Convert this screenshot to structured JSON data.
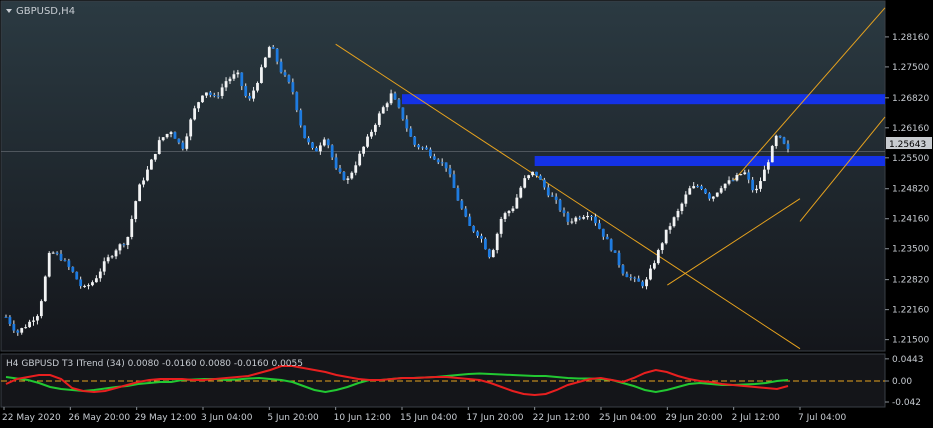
{
  "chart_data": [
    {
      "type": "candlestick",
      "title": "GBPUSD,H4",
      "yticks": [
        "1.28160",
        "1.27500",
        "1.26820",
        "1.26160",
        "1.25500",
        "1.24820",
        "1.24160",
        "1.23500",
        "1.22820",
        "1.22160",
        "1.21500"
      ],
      "ylim": [
        1.2125,
        1.2895
      ],
      "price_label": "1.25643",
      "current_price": 1.25643,
      "xticks": [
        "22 May 2020",
        "26 May 20:00",
        "29 May 12:00",
        "3 Jun 04:00",
        "5 Jun 20:00",
        "10 Jun 12:00",
        "15 Jun 04:00",
        "17 Jun 20:00",
        "22 Jun 12:00",
        "25 Jun 04:00",
        "29 Jun 20:00",
        "2 Jul 12:00",
        "7 Jul 04:00"
      ],
      "close_path": [
        1.22,
        1.2165,
        1.2185,
        1.221,
        1.2345,
        1.233,
        1.23,
        1.226,
        1.228,
        1.232,
        1.235,
        1.237,
        1.248,
        1.253,
        1.259,
        1.261,
        1.257,
        1.265,
        1.27,
        1.268,
        1.272,
        1.2735,
        1.267,
        1.273,
        1.28,
        1.274,
        1.27,
        1.26,
        1.256,
        1.26,
        1.252,
        1.25,
        1.255,
        1.26,
        1.265,
        1.269,
        1.264,
        1.258,
        1.257,
        1.255,
        1.253,
        1.246,
        1.24,
        1.238,
        1.233,
        1.242,
        1.244,
        1.25,
        1.252,
        1.248,
        1.245,
        1.241,
        1.242,
        1.243,
        1.239,
        1.235,
        1.23,
        1.228,
        1.227,
        1.233,
        1.239,
        1.243,
        1.248,
        1.249,
        1.246,
        1.249,
        1.25,
        1.252,
        1.247,
        1.253,
        1.26,
        1.2565
      ],
      "levels": [
        {
          "type": "resistance",
          "price": 1.2679,
          "from": "15 Jun 04:00",
          "to": "latest"
        },
        {
          "type": "resistance",
          "price": 1.2543,
          "from": "22 Jun 12:00",
          "to": "latest"
        }
      ],
      "trendlines": [
        {
          "from": [
            1.28,
            "10 Jun 12:00"
          ],
          "to": [
            1.213,
            "7 Jul 04:00"
          ]
        },
        {
          "from": [
            1.25,
            "2 Jul 12:00"
          ],
          "to": [
            1.288,
            "latest"
          ]
        },
        {
          "from": [
            1.241,
            "7 Jul 04:00"
          ],
          "to": [
            1.264,
            "latest"
          ]
        },
        {
          "from": [
            1.227,
            "29 Jun 20:00"
          ],
          "to": [
            1.246,
            "7 Jul 04:00"
          ]
        }
      ]
    },
    {
      "type": "line",
      "title": "H4 GBPUSD T3 ITrend (34) 0.0080 -0.0160 0.0080 -0.0160 0.0055",
      "yticks": [
        "0.0443",
        "0.00",
        "-0.042"
      ],
      "ylim": [
        -0.048,
        0.05
      ],
      "series": [
        {
          "color": "#22c832",
          "values": [
            0.008,
            0.005,
            0.002,
            -0.004,
            -0.012,
            -0.016,
            -0.018,
            -0.02,
            -0.018,
            -0.015,
            -0.012,
            -0.01,
            -0.006,
            -0.004,
            -0.002,
            -0.002,
            0.002,
            0.003,
            0.004,
            0.004,
            0.002,
            0.003,
            0.005,
            0.006,
            0.004,
            0.002,
            -0.002,
            -0.01,
            -0.018,
            -0.022,
            -0.018,
            -0.012,
            -0.004,
            0.002,
            0.002,
            0.004,
            0.006,
            0.006,
            0.007,
            0.008,
            0.01,
            0.012,
            0.014,
            0.015,
            0.014,
            0.013,
            0.012,
            0.011,
            0.01,
            0.01,
            0.008,
            0.006,
            0.005,
            0.005,
            0.004,
            0.002,
            -0.004,
            -0.01,
            -0.018,
            -0.022,
            -0.018,
            -0.012,
            -0.006,
            -0.004,
            -0.006,
            -0.008,
            -0.008,
            -0.007,
            -0.006,
            -0.004,
            0.0,
            0.002
          ]
        },
        {
          "color": "#e81f1f",
          "values": [
            -0.006,
            0.004,
            0.008,
            0.012,
            0.012,
            0.004,
            -0.014,
            -0.02,
            -0.022,
            -0.02,
            -0.014,
            -0.008,
            -0.002,
            0.002,
            0.004,
            0.004,
            0.004,
            0.002,
            0.002,
            0.004,
            0.006,
            0.008,
            0.01,
            0.016,
            0.022,
            0.03,
            0.03,
            0.026,
            0.022,
            0.018,
            0.012,
            0.008,
            0.004,
            0.002,
            0.002,
            0.004,
            0.006,
            0.006,
            0.007,
            0.008,
            0.008,
            0.006,
            0.004,
            0.002,
            -0.004,
            -0.012,
            -0.02,
            -0.026,
            -0.028,
            -0.026,
            -0.018,
            -0.008,
            -0.002,
            0.004,
            0.006,
            0.002,
            -0.002,
            0.006,
            0.016,
            0.022,
            0.018,
            0.01,
            0.004,
            0.0,
            -0.002,
            -0.006,
            -0.008,
            -0.01,
            -0.012,
            -0.014,
            -0.016,
            -0.01
          ]
        }
      ],
      "signal_level": 0.0
    }
  ]
}
